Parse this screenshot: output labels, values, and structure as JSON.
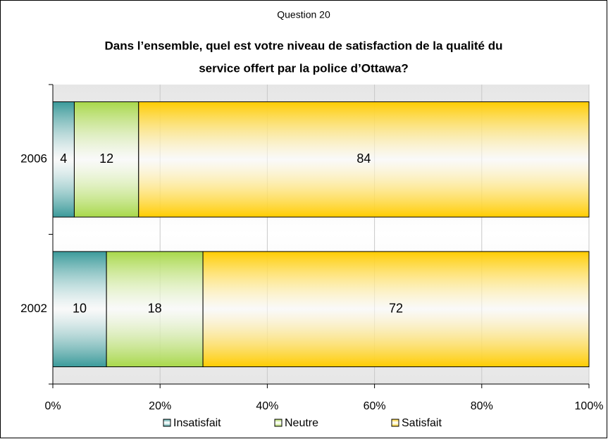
{
  "chart_data": {
    "type": "stacked-bar-horizontal",
    "title": "Question 20",
    "subtitle": [
      "Dans l’ensemble, quel est votre niveau de satisfaction de la qualité du",
      "service offert par la police d’Ottawa?"
    ],
    "categories": [
      "2006",
      "2002"
    ],
    "series": [
      {
        "name": "Insatisfait",
        "color": "#3a9a9a",
        "values": [
          4,
          10
        ]
      },
      {
        "name": "Neutre",
        "color": "#a8d84a",
        "values": [
          12,
          18
        ]
      },
      {
        "name": "Satisfait",
        "color": "#ffcc00",
        "values": [
          84,
          72
        ]
      }
    ],
    "xlim": [
      0,
      100
    ],
    "xticks": [
      {
        "value": 0,
        "label": "0%"
      },
      {
        "value": 20,
        "label": "20%"
      },
      {
        "value": 40,
        "label": "40%"
      },
      {
        "value": 60,
        "label": "60%"
      },
      {
        "value": 80,
        "label": "80%"
      },
      {
        "value": 100,
        "label": "100%"
      }
    ],
    "grid": true,
    "legend": "bottom"
  }
}
